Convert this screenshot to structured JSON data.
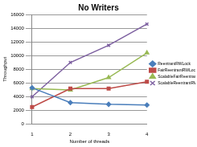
{
  "chart_data": {
    "type": "line",
    "title": "No Writers",
    "x_label": "Number of threads",
    "y_label": "Throughput",
    "categories": [
      "1",
      "2",
      "3",
      "4"
    ],
    "series": [
      {
        "name": "ReentrantRWLock",
        "color": "#4a7ebb",
        "marker": "diamond",
        "values": [
          5300,
          3150,
          2900,
          2800
        ]
      },
      {
        "name": "FairReentrantRWLock",
        "color": "#be4b48",
        "marker": "square",
        "values": [
          2500,
          5200,
          5200,
          6200
        ]
      },
      {
        "name": "ScalableFairReentrantRWLock",
        "color": "#98b954",
        "marker": "triangle",
        "values": [
          5200,
          5000,
          6800,
          10400
        ]
      },
      {
        "name": "ScalableReentrantRWLock",
        "color": "#7d60a0",
        "marker": "x",
        "values": [
          4000,
          9000,
          11500,
          14600
        ]
      }
    ],
    "ylim": [
      0,
      16000
    ],
    "yticks": [
      0,
      2000,
      4000,
      6000,
      8000,
      10000,
      12000,
      14000,
      16000
    ],
    "grid": true,
    "legend": "right"
  }
}
